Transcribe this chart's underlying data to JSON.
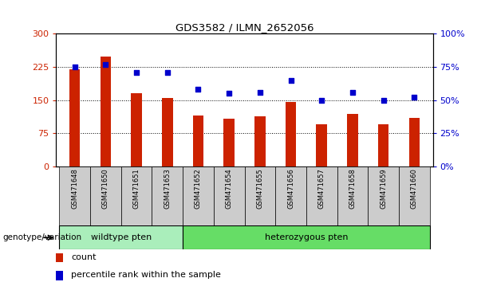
{
  "title": "GDS3582 / ILMN_2652056",
  "categories": [
    "GSM471648",
    "GSM471650",
    "GSM471651",
    "GSM471653",
    "GSM471652",
    "GSM471654",
    "GSM471655",
    "GSM471656",
    "GSM471657",
    "GSM471658",
    "GSM471659",
    "GSM471660"
  ],
  "bar_values": [
    220,
    248,
    165,
    155,
    115,
    108,
    113,
    145,
    95,
    118,
    95,
    110
  ],
  "percentile_values": [
    75,
    77,
    71,
    71,
    58,
    55,
    56,
    65,
    50,
    56,
    50,
    52
  ],
  "bar_color": "#cc2200",
  "percentile_color": "#0000cc",
  "bg_color": "#ffffff",
  "plot_bg_color": "#ffffff",
  "grid_color": "#000000",
  "ylim_left": [
    0,
    300
  ],
  "ylim_right": [
    0,
    100
  ],
  "yticks_left": [
    0,
    75,
    150,
    225,
    300
  ],
  "ytick_labels_left": [
    "0",
    "75",
    "150",
    "225",
    "300"
  ],
  "yticks_right": [
    0,
    25,
    50,
    75,
    100
  ],
  "ytick_labels_right": [
    "0%",
    "25%",
    "50%",
    "75%",
    "100%"
  ],
  "wildtype_count": 4,
  "heterozygous_count": 8,
  "wildtype_label": "wildtype pten",
  "heterozygous_label": "heterozygous pten",
  "genotype_label": "genotype/variation",
  "wildtype_color": "#aaeebb",
  "heterozygous_color": "#66dd66",
  "group_bg_color": "#cccccc",
  "legend_count_label": "count",
  "legend_percentile_label": "percentile rank within the sample",
  "bar_width": 0.35
}
